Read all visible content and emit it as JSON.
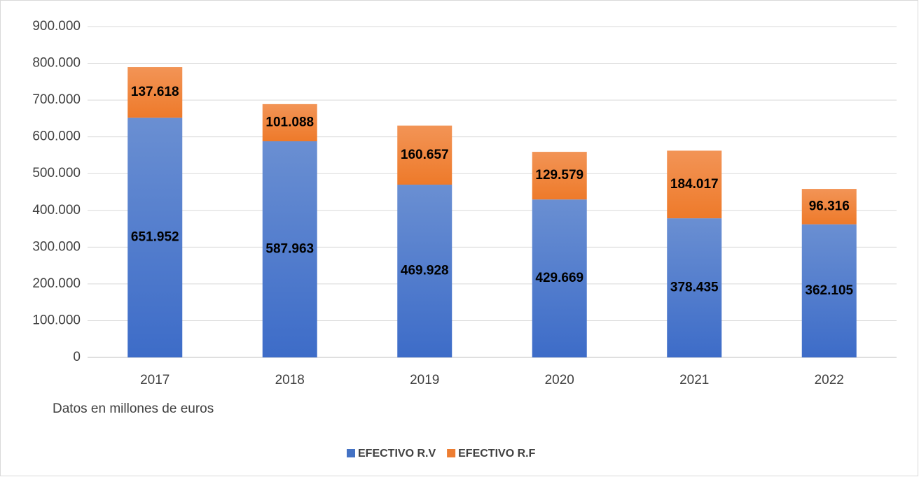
{
  "chart_data": {
    "type": "stacked_bar",
    "categories": [
      "2017",
      "2018",
      "2019",
      "2020",
      "2021",
      "2022"
    ],
    "series": [
      {
        "name": "EFECTIVO R.V",
        "color": "#4472c4",
        "values": [
          651952,
          587963,
          469928,
          429669,
          378435,
          362105
        ],
        "value_labels": [
          "651.952",
          "587.963",
          "469.928",
          "429.669",
          "378.435",
          "362.105"
        ]
      },
      {
        "name": "EFECTIVO R.F",
        "color": "#ed7d31",
        "values": [
          137618,
          101088,
          160657,
          129579,
          184017,
          96316
        ],
        "value_labels": [
          "137.618",
          "101.088",
          "160.657",
          "129.579",
          "184.017",
          "96.316"
        ]
      }
    ],
    "ylim": [
      0,
      900000
    ],
    "yticks": [
      0,
      {
        "value": 100000,
        "label": "100.000"
      },
      {
        "value": 200000,
        "label": "200.000"
      },
      {
        "value": 300000,
        "label": "300.000"
      },
      {
        "value": 400000,
        "label": "400.000"
      },
      {
        "value": 500000,
        "label": "500.000"
      },
      {
        "value": 600000,
        "label": "600.000"
      },
      {
        "value": 700000,
        "label": "700.000"
      },
      {
        "value": 800000,
        "label": "800.000"
      },
      {
        "value": 900000,
        "label": "900.000"
      }
    ],
    "grid": true,
    "note": "Datos en millones de euros",
    "legend": "bottom"
  }
}
